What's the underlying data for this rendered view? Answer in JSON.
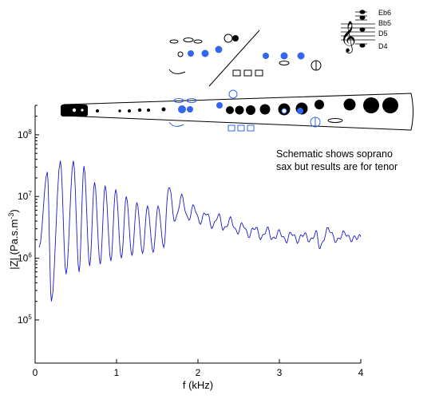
{
  "chart_data": {
    "type": "line",
    "title": "",
    "xlabel": "f (kHz)",
    "ylabel_base": "|Z| (Pa.s.m",
    "ylabel_sup": "-3",
    "ylabel_close": ")",
    "x_scale": "linear",
    "y_scale": "log",
    "xlim": [
      0,
      4
    ],
    "ylim": [
      20000,
      300000000
    ],
    "x_ticks": [
      0,
      1,
      2,
      3,
      4
    ],
    "x_tick_labels": [
      "0",
      "1",
      "2",
      "3",
      "4"
    ],
    "y_ticks": [
      100000,
      1000000,
      10000000,
      100000000
    ],
    "y_tick_labels": [
      {
        "base": "10",
        "exp": "5"
      },
      {
        "base": "10",
        "exp": "6"
      },
      {
        "base": "10",
        "exp": "7"
      },
      {
        "base": "10",
        "exp": "8"
      }
    ],
    "grid": false,
    "legend": "none",
    "series_color": "#1a1acc",
    "peaks": [
      {
        "x": 0.15,
        "y": 25000000
      },
      {
        "x": 0.31,
        "y": 38000000
      },
      {
        "x": 0.47,
        "y": 38000000
      },
      {
        "x": 0.6,
        "y": 31000000
      },
      {
        "x": 0.73,
        "y": 17000000
      },
      {
        "x": 0.86,
        "y": 15000000
      },
      {
        "x": 0.99,
        "y": 13000000
      },
      {
        "x": 1.12,
        "y": 10000000
      },
      {
        "x": 1.25,
        "y": 8000000
      },
      {
        "x": 1.38,
        "y": 7000000
      },
      {
        "x": 1.51,
        "y": 7000000
      },
      {
        "x": 1.64,
        "y": 15000000
      },
      {
        "x": 1.8,
        "y": 10000000
      },
      {
        "x": 1.95,
        "y": 7000000
      },
      {
        "x": 2.1,
        "y": 5500000
      },
      {
        "x": 2.25,
        "y": 5000000
      },
      {
        "x": 2.4,
        "y": 4300000
      },
      {
        "x": 2.55,
        "y": 3600000
      },
      {
        "x": 2.7,
        "y": 3200000
      },
      {
        "x": 2.85,
        "y": 3000000
      },
      {
        "x": 3.0,
        "y": 2700000
      },
      {
        "x": 3.15,
        "y": 2600000
      },
      {
        "x": 3.3,
        "y": 2500000
      },
      {
        "x": 3.45,
        "y": 2600000
      },
      {
        "x": 3.6,
        "y": 3000000
      },
      {
        "x": 3.8,
        "y": 2600000
      },
      {
        "x": 3.95,
        "y": 2200000
      }
    ],
    "troughs": [
      {
        "x": 0.05,
        "y": 1500000
      },
      {
        "x": 0.2,
        "y": 200000
      },
      {
        "x": 0.38,
        "y": 550000
      },
      {
        "x": 0.54,
        "y": 600000
      },
      {
        "x": 0.67,
        "y": 750000
      },
      {
        "x": 0.8,
        "y": 800000
      },
      {
        "x": 0.93,
        "y": 900000
      },
      {
        "x": 1.06,
        "y": 1000000
      },
      {
        "x": 1.19,
        "y": 1100000
      },
      {
        "x": 1.32,
        "y": 1200000
      },
      {
        "x": 1.45,
        "y": 1250000
      },
      {
        "x": 1.58,
        "y": 1500000
      },
      {
        "x": 1.72,
        "y": 4000000
      },
      {
        "x": 1.88,
        "y": 4200000
      },
      {
        "x": 2.02,
        "y": 3800000
      },
      {
        "x": 2.18,
        "y": 3200000
      },
      {
        "x": 2.32,
        "y": 2900000
      },
      {
        "x": 2.48,
        "y": 2600000
      },
      {
        "x": 2.62,
        "y": 2300000
      },
      {
        "x": 2.78,
        "y": 2100000
      },
      {
        "x": 2.92,
        "y": 2000000
      },
      {
        "x": 3.08,
        "y": 1900000
      },
      {
        "x": 3.22,
        "y": 1900000
      },
      {
        "x": 3.38,
        "y": 1900000
      },
      {
        "x": 3.5,
        "y": 1500000
      },
      {
        "x": 3.7,
        "y": 1900000
      },
      {
        "x": 3.88,
        "y": 2000000
      },
      {
        "x": 4.0,
        "y": 2200000
      }
    ]
  },
  "annotations": {
    "note_line1": "Schematic shows soprano",
    "note_line2": "sax but results are for tenor",
    "notes": [
      "Eb6",
      "Bb5",
      "D5",
      "D4"
    ]
  }
}
